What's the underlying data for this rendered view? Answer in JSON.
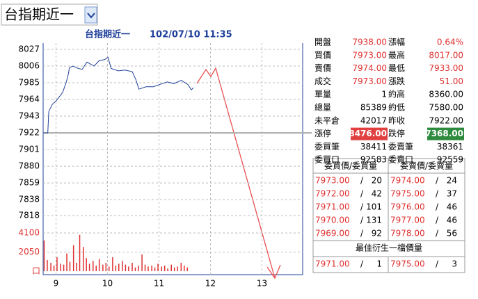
{
  "selector": {
    "label": "台指期近一"
  },
  "chart": {
    "title": "台指期近一",
    "datetime": "102/07/10 11:35",
    "xlim": [
      8.75,
      13.75
    ],
    "xticks": [
      9,
      10,
      11,
      12,
      13
    ],
    "ylim": [
      7818,
      8027
    ],
    "yticks": [
      8027,
      8006,
      7985,
      7964,
      7943,
      7922,
      7901,
      7880,
      7859,
      7838,
      7818
    ],
    "reference": 7922,
    "grid": true,
    "price": {
      "color": "#1f3f9a",
      "x": [
        8.75,
        8.84,
        8.86,
        8.93,
        9.0,
        9.06,
        9.13,
        9.2,
        9.24,
        9.26,
        9.33,
        9.43,
        9.51,
        9.6,
        9.74,
        9.84,
        9.94,
        10.01,
        10.07,
        10.21,
        10.34,
        10.48,
        10.55,
        10.61,
        10.75,
        10.89,
        11.02,
        11.16,
        11.29,
        11.43,
        11.56,
        11.63,
        11.67
      ],
      "values": [
        7922,
        7922,
        7949,
        7958,
        7962,
        7967,
        7973,
        7986,
        7996,
        8004,
        8006,
        8003,
        8002,
        8011,
        8006,
        8013,
        8014,
        8017,
        8003,
        8000,
        8001,
        7999,
        7989,
        7977,
        7980,
        7980,
        7983,
        7986,
        7984,
        7988,
        7983,
        7976,
        7979
      ]
    },
    "volume": {
      "color": "#e03030",
      "ylim": [
        0,
        4100
      ],
      "yticks": [
        4100,
        2050
      ],
      "unit": "口",
      "x": [
        8.77,
        8.83,
        8.9,
        8.96,
        9.02,
        9.09,
        9.15,
        9.21,
        9.27,
        9.34,
        9.4,
        9.46,
        9.53,
        9.59,
        9.65,
        9.72,
        9.78,
        9.84,
        9.91,
        9.97,
        10.03,
        10.1,
        10.16,
        10.22,
        10.29,
        10.35,
        10.41,
        10.48,
        10.54,
        10.6,
        10.67,
        10.73,
        10.79,
        10.86,
        10.92,
        10.98,
        11.05,
        11.11,
        11.17,
        11.24,
        11.3,
        11.36,
        11.43,
        11.49,
        11.55
      ],
      "values": [
        3300,
        1200,
        900,
        600,
        1500,
        800,
        700,
        1900,
        1000,
        2800,
        900,
        3900,
        2600,
        1400,
        800,
        1100,
        600,
        1300,
        700,
        900,
        500,
        1500,
        600,
        800,
        1100,
        700,
        500,
        900,
        400,
        600,
        1800,
        700,
        500,
        600,
        400,
        800,
        500,
        600,
        300,
        700,
        400,
        500,
        900,
        600,
        400
      ]
    }
  },
  "quote": {
    "rows": [
      [
        {
          "label": "開盤",
          "value": "7938.00",
          "color": "#e03030"
        },
        {
          "label": "漲幅",
          "value": "0.64%",
          "color": "#e03030"
        }
      ],
      [
        {
          "label": "買價",
          "value": "7973.00",
          "color": "#e03030"
        },
        {
          "label": "最高",
          "value": "8017.00",
          "color": "#e03030"
        }
      ],
      [
        {
          "label": "賣價",
          "value": "7974.00",
          "color": "#e03030"
        },
        {
          "label": "最低",
          "value": "7933.00",
          "color": "#e03030"
        }
      ],
      [
        {
          "label": "成交",
          "value": "7973.00",
          "color": "#e03030"
        },
        {
          "label": "漲跌",
          "value": "51.00",
          "color": "#e03030"
        }
      ],
      [
        {
          "label": "單量",
          "value": "1",
          "color": "#000000"
        },
        {
          "label": "約高",
          "value": "8360.00",
          "color": "#000000"
        }
      ],
      [
        {
          "label": "總量",
          "value": "85389",
          "color": "#000000"
        },
        {
          "label": "約低",
          "value": "7580.00",
          "color": "#000000"
        }
      ],
      [
        {
          "label": "未平倉",
          "value": "42017",
          "color": "#000000"
        },
        {
          "label": "昨收",
          "value": "7922.00",
          "color": "#000000"
        }
      ],
      [
        {
          "label": "漲停",
          "value": "8476.00",
          "color": "#ffffff",
          "background": "#e04040"
        },
        {
          "label": "跌停",
          "value": "7368.00",
          "color": "#ffffff",
          "background": "#2e8b3e"
        }
      ],
      [
        {
          "label": "委買筆",
          "value": "38411",
          "color": "#000000"
        },
        {
          "label": "委賣筆",
          "value": "38361",
          "color": "#000000"
        }
      ],
      [
        {
          "label": "委買口",
          "value": "92583",
          "color": "#000000"
        },
        {
          "label": "委賣口",
          "value": "92559",
          "color": "#000000"
        }
      ]
    ]
  },
  "order_book": {
    "headers": [
      "委買價/委買量",
      "委賣價/委賣量"
    ],
    "separator": "/",
    "rows": [
      [
        "7973.00",
        "20",
        "7974.00",
        "24"
      ],
      [
        "7972.00",
        "42",
        "7975.00",
        "37"
      ],
      [
        "7971.00",
        "101",
        "7976.00",
        "46"
      ],
      [
        "7970.00",
        "131",
        "7977.00",
        "46"
      ],
      [
        "7969.00",
        "92",
        "7978.00",
        "56"
      ]
    ],
    "best_title": "最佳衍生一檔價量",
    "best_row": [
      "7971.00",
      "1",
      "7975.00",
      "3"
    ]
  }
}
